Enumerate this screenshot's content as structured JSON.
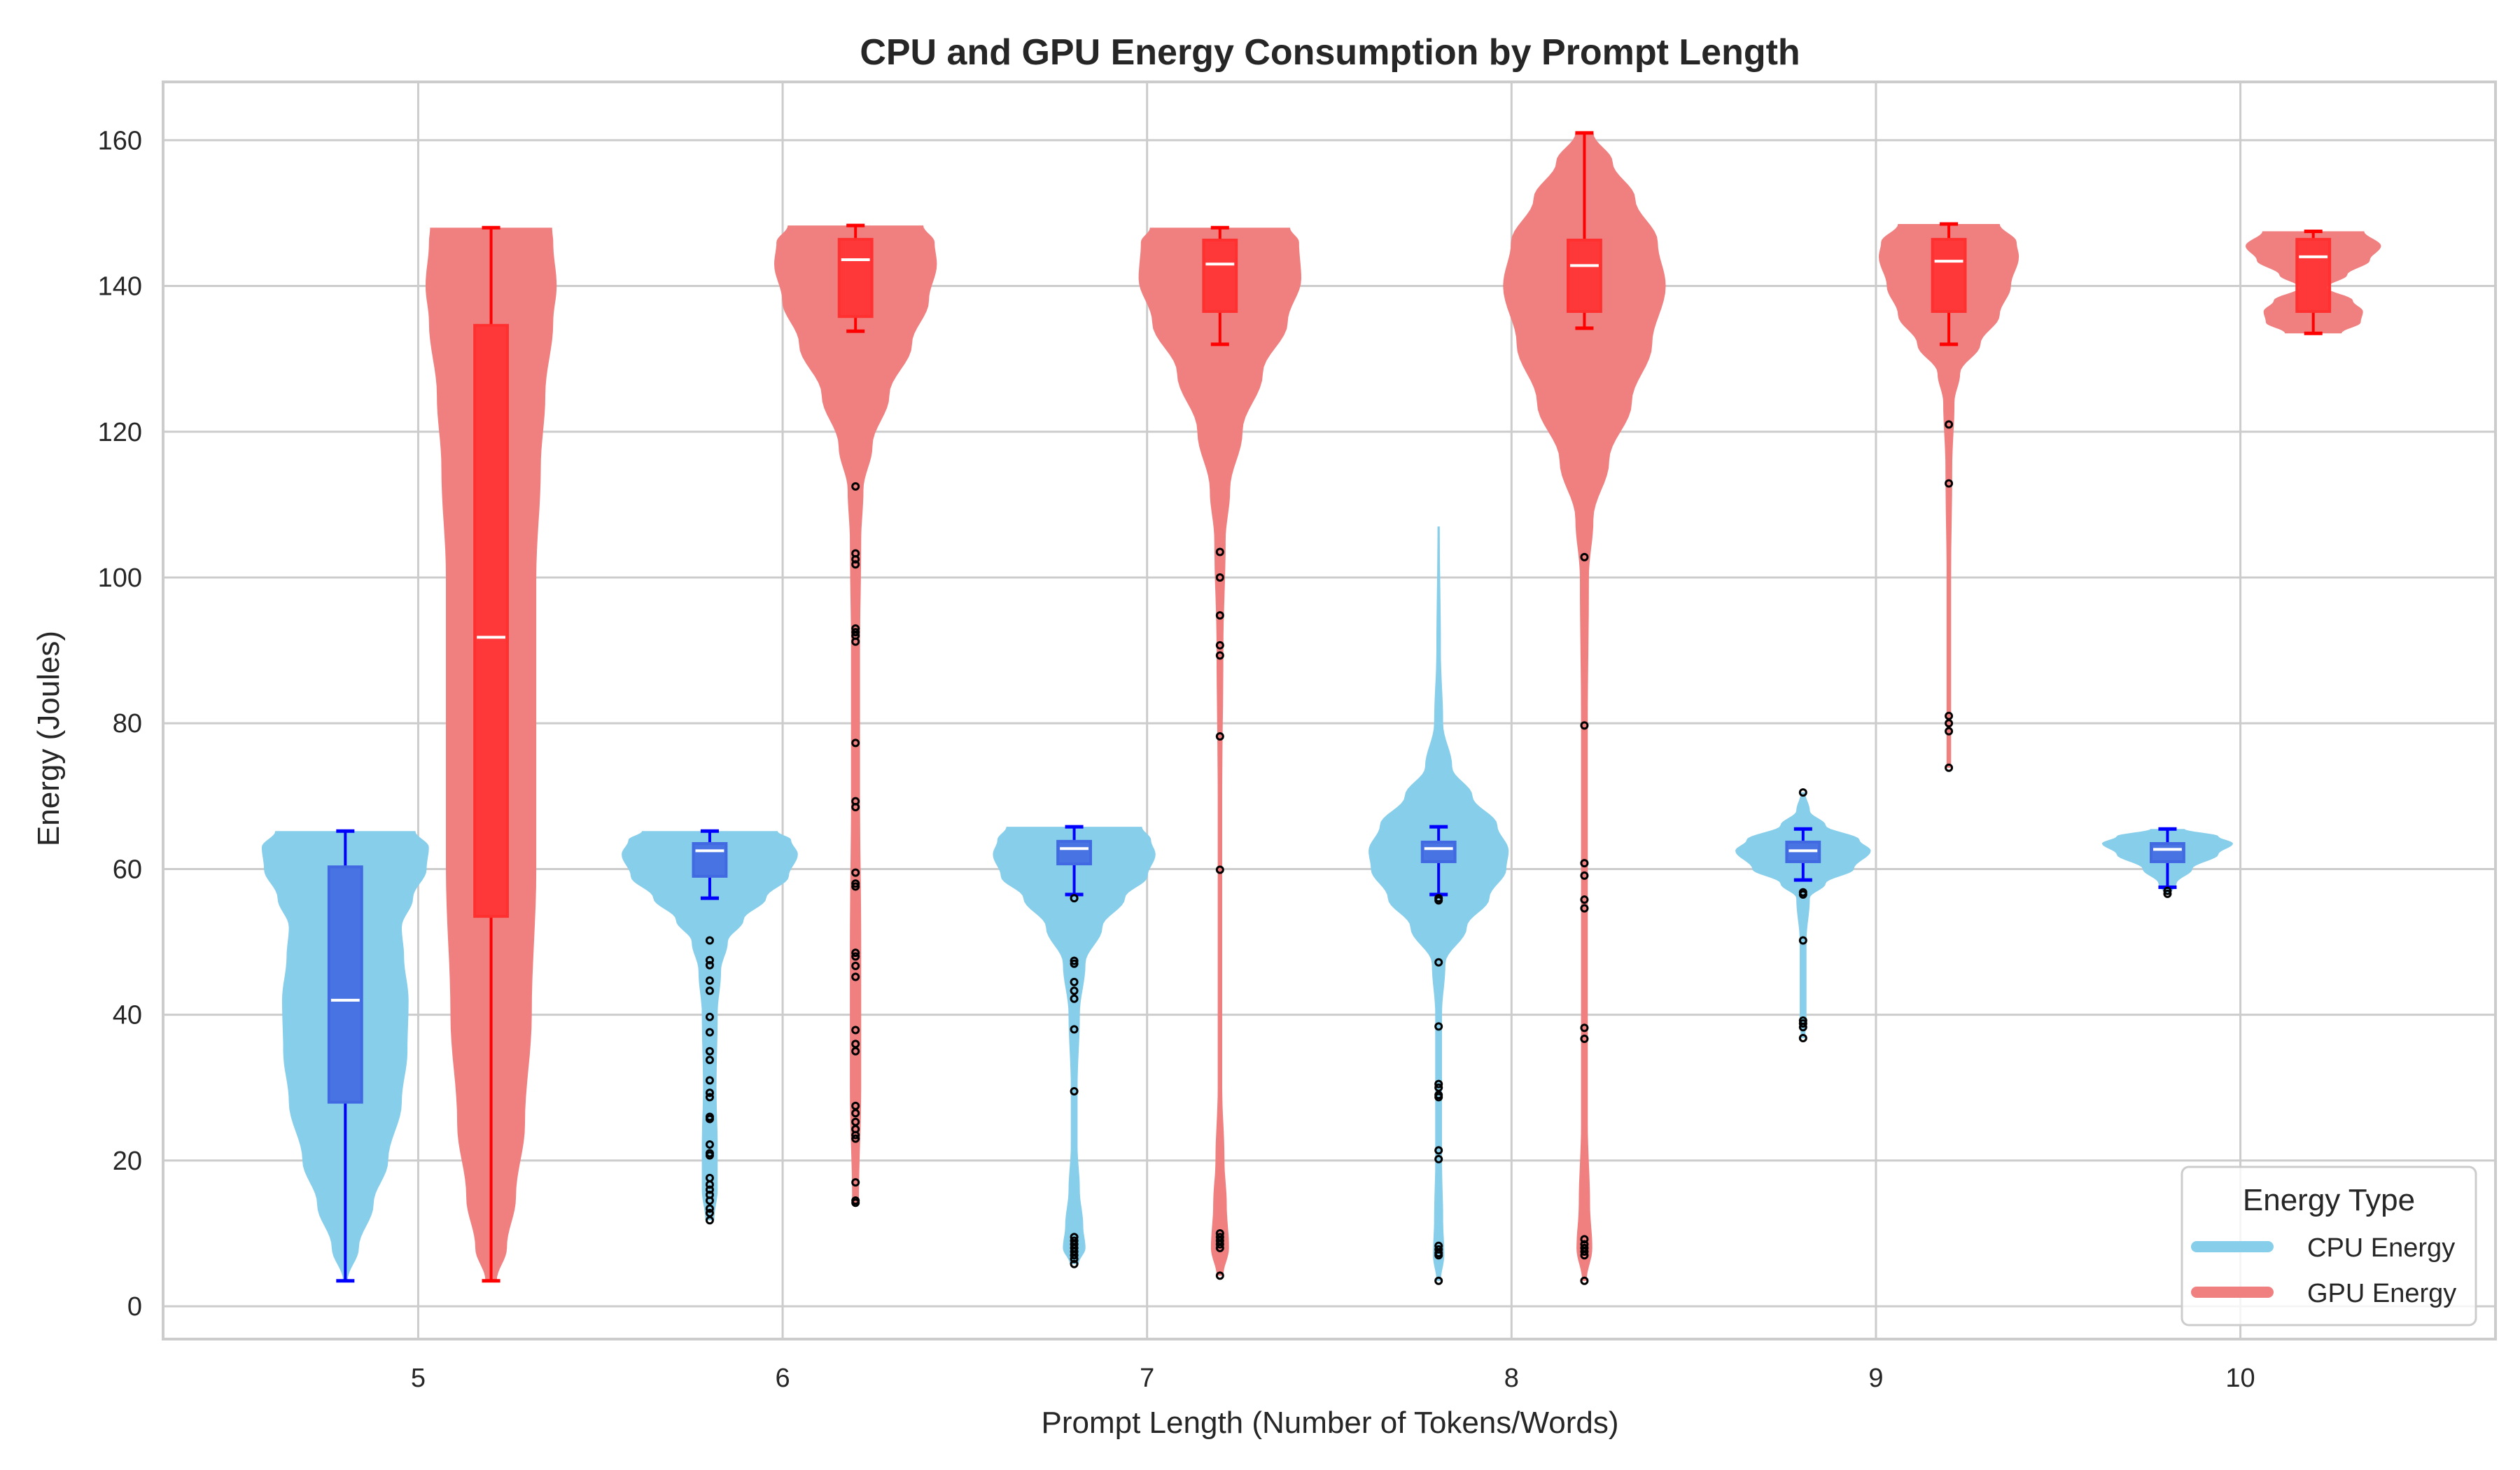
{
  "chart_data": {
    "type": "violin",
    "title": "CPU and GPU Energy Consumption by Prompt Length",
    "xlabel": "Prompt Length (Number of Tokens/Words)",
    "ylabel": "Energy (Joules)",
    "xlim": [
      4.3,
      10.7
    ],
    "ylim": [
      -4.5,
      168
    ],
    "x_ticks": [
      5,
      6,
      7,
      8,
      9,
      10
    ],
    "y_ticks": [
      0,
      20,
      40,
      60,
      80,
      100,
      120,
      140,
      160
    ],
    "grid": true,
    "legend": {
      "title": "Energy Type",
      "placement": "lower-right",
      "entries": [
        {
          "label": "CPU Energy",
          "color": "#87CEEB"
        },
        {
          "label": "GPU Energy",
          "color": "#F08080"
        }
      ]
    },
    "colors": {
      "cpu_violin": "#87CEEB",
      "gpu_violin": "#F08080",
      "cpu_box": "#4169E1",
      "gpu_box": "#FF3030",
      "cpu_line": "#0000FF",
      "gpu_line": "#FF0000",
      "median": "#FFFFFF",
      "outlier": "#000000",
      "grid": "#CCCCCC",
      "text": "#262626"
    },
    "series": [
      {
        "name": "CPU Energy",
        "offset": -0.2,
        "groups": [
          {
            "x": 5,
            "min": 3.5,
            "max": 65.2,
            "q1": 28.0,
            "median": 42.0,
            "q3": 60.3,
            "whisker_low": 3.5,
            "whisker_high": 65.2,
            "density": [
              [
                3.5,
                0.02
              ],
              [
                8,
                0.12
              ],
              [
                14,
                0.25
              ],
              [
                20,
                0.38
              ],
              [
                28,
                0.5
              ],
              [
                35,
                0.55
              ],
              [
                42,
                0.56
              ],
              [
                48,
                0.52
              ],
              [
                52,
                0.5
              ],
              [
                56,
                0.6
              ],
              [
                60,
                0.72
              ],
              [
                63,
                0.74
              ],
              [
                65.2,
                0.62
              ]
            ],
            "outliers": []
          },
          {
            "x": 6,
            "min": 11.8,
            "max": 65.2,
            "q1": 59.0,
            "median": 62.5,
            "q3": 63.5,
            "whisker_low": 56.0,
            "whisker_high": 65.2,
            "density": [
              [
                11.8,
                0.04
              ],
              [
                16,
                0.07
              ],
              [
                22,
                0.07
              ],
              [
                30,
                0.06
              ],
              [
                40,
                0.07
              ],
              [
                46,
                0.1
              ],
              [
                50,
                0.16
              ],
              [
                53,
                0.3
              ],
              [
                56,
                0.5
              ],
              [
                59,
                0.7
              ],
              [
                62,
                0.78
              ],
              [
                64,
                0.72
              ],
              [
                65.2,
                0.6
              ]
            ],
            "outliers": [
              50.2,
              47.5,
              46.8,
              44.7,
              43.3,
              39.7,
              37.6,
              35.0,
              33.8,
              31.0,
              29.3,
              28.7,
              26.0,
              25.7,
              22.2,
              21.0,
              20.7,
              17.6,
              16.7,
              16.0,
              15.3,
              14.5,
              13.4,
              12.8,
              11.8
            ]
          },
          {
            "x": 7,
            "min": 5.8,
            "max": 65.8,
            "q1": 60.7,
            "median": 62.8,
            "q3": 63.8,
            "whisker_low": 56.5,
            "whisker_high": 65.8,
            "density": [
              [
                5.8,
                0.04
              ],
              [
                8,
                0.1
              ],
              [
                11,
                0.08
              ],
              [
                16,
                0.05
              ],
              [
                22,
                0.03
              ],
              [
                30,
                0.03
              ],
              [
                40,
                0.05
              ],
              [
                47,
                0.1
              ],
              [
                52,
                0.25
              ],
              [
                56,
                0.45
              ],
              [
                59,
                0.65
              ],
              [
                62,
                0.72
              ],
              [
                64,
                0.68
              ],
              [
                65.8,
                0.6
              ]
            ],
            "outliers": [
              56.0,
              47.4,
              47.0,
              44.5,
              43.3,
              42.2,
              38.0,
              29.5,
              9.5,
              9.0,
              8.5,
              8.0,
              7.5,
              7.0,
              6.5,
              5.8
            ]
          },
          {
            "x": 8,
            "min": 3.5,
            "max": 107.0,
            "q1": 61.0,
            "median": 62.8,
            "q3": 63.7,
            "whisker_low": 56.5,
            "whisker_high": 65.8,
            "density": [
              [
                3.5,
                0.02
              ],
              [
                7,
                0.05
              ],
              [
                12,
                0.04
              ],
              [
                20,
                0.03
              ],
              [
                30,
                0.03
              ],
              [
                40,
                0.03
              ],
              [
                47,
                0.06
              ],
              [
                52,
                0.25
              ],
              [
                56,
                0.45
              ],
              [
                60,
                0.6
              ],
              [
                62.5,
                0.62
              ],
              [
                66,
                0.52
              ],
              [
                70,
                0.3
              ],
              [
                74,
                0.12
              ],
              [
                80,
                0.04
              ],
              [
                90,
                0.02
              ],
              [
                107,
                0.01
              ]
            ],
            "outliers": [
              56.0,
              55.7,
              47.2,
              38.4,
              30.5,
              30.0,
              29.0,
              28.7,
              21.4,
              20.2,
              8.3,
              7.8,
              7.3,
              7.0,
              3.5
            ]
          },
          {
            "x": 9,
            "min": 36.8,
            "max": 70.5,
            "q1": 61.0,
            "median": 62.5,
            "q3": 63.7,
            "whisker_low": 58.5,
            "whisker_high": 65.5,
            "density": [
              [
                36.8,
                0.02
              ],
              [
                40,
                0.03
              ],
              [
                50,
                0.03
              ],
              [
                56,
                0.06
              ],
              [
                58,
                0.2
              ],
              [
                60,
                0.45
              ],
              [
                62.5,
                0.6
              ],
              [
                64,
                0.5
              ],
              [
                66,
                0.2
              ],
              [
                68,
                0.06
              ],
              [
                70.5,
                0.02
              ]
            ],
            "outliers": [
              70.5,
              56.8,
              56.5,
              50.2,
              39.2,
              38.8,
              38.3,
              36.8
            ]
          },
          {
            "x": 10,
            "min": 56.6,
            "max": 65.5,
            "q1": 61.0,
            "median": 62.7,
            "q3": 63.5,
            "whisker_low": 57.5,
            "whisker_high": 65.5,
            "density": [
              [
                56.6,
                0.03
              ],
              [
                58,
                0.08
              ],
              [
                60,
                0.22
              ],
              [
                62,
                0.45
              ],
              [
                63.5,
                0.58
              ],
              [
                64.5,
                0.45
              ],
              [
                65.5,
                0.15
              ]
            ],
            "outliers": [
              57.0,
              56.6
            ]
          }
        ]
      },
      {
        "name": "GPU Energy",
        "offset": 0.2,
        "groups": [
          {
            "x": 5,
            "min": 3.5,
            "max": 148.0,
            "q1": 53.5,
            "median": 91.8,
            "q3": 134.6,
            "whisker_low": 3.5,
            "whisker_high": 148.0,
            "density": [
              [
                3.5,
                0.05
              ],
              [
                8,
                0.14
              ],
              [
                15,
                0.22
              ],
              [
                25,
                0.3
              ],
              [
                40,
                0.36
              ],
              [
                60,
                0.4
              ],
              [
                80,
                0.4
              ],
              [
                100,
                0.4
              ],
              [
                115,
                0.44
              ],
              [
                125,
                0.48
              ],
              [
                135,
                0.55
              ],
              [
                140,
                0.58
              ],
              [
                146,
                0.55
              ],
              [
                148,
                0.54
              ]
            ],
            "outliers": []
          },
          {
            "x": 6,
            "min": 14.2,
            "max": 148.3,
            "q1": 135.8,
            "median": 143.6,
            "q3": 146.4,
            "whisker_low": 133.8,
            "whisker_high": 148.3,
            "density": [
              [
                14.2,
                0.03
              ],
              [
                30,
                0.05
              ],
              [
                50,
                0.05
              ],
              [
                70,
                0.04
              ],
              [
                90,
                0.04
              ],
              [
                105,
                0.05
              ],
              [
                112,
                0.07
              ],
              [
                118,
                0.15
              ],
              [
                125,
                0.3
              ],
              [
                132,
                0.5
              ],
              [
                138,
                0.65
              ],
              [
                143,
                0.72
              ],
              [
                146,
                0.7
              ],
              [
                148.3,
                0.6
              ]
            ],
            "outliers": [
              112.5,
              103.3,
              102.5,
              101.8,
              93.0,
              92.5,
              92.0,
              91.2,
              77.3,
              69.3,
              68.5,
              59.5,
              58.0,
              57.6,
              48.5,
              48.0,
              46.7,
              45.2,
              37.9,
              36.0,
              35.0,
              27.5,
              26.5,
              25.3,
              24.3,
              23.5,
              23.0,
              17.0,
              14.5,
              14.2
            ]
          },
          {
            "x": 7,
            "min": 4.2,
            "max": 148.0,
            "q1": 136.5,
            "median": 143.0,
            "q3": 146.3,
            "whisker_low": 132.0,
            "whisker_high": 148.0,
            "density": [
              [
                4.2,
                0.03
              ],
              [
                8,
                0.08
              ],
              [
                14,
                0.06
              ],
              [
                20,
                0.04
              ],
              [
                30,
                0.02
              ],
              [
                50,
                0.02
              ],
              [
                70,
                0.02
              ],
              [
                90,
                0.03
              ],
              [
                105,
                0.05
              ],
              [
                112,
                0.09
              ],
              [
                120,
                0.2
              ],
              [
                128,
                0.38
              ],
              [
                135,
                0.6
              ],
              [
                141,
                0.72
              ],
              [
                146,
                0.7
              ],
              [
                148,
                0.62
              ]
            ],
            "outliers": [
              103.5,
              100.0,
              94.8,
              90.7,
              89.3,
              78.2,
              59.9,
              10.0,
              9.5,
              9.0,
              8.5,
              8.0,
              4.2
            ]
          },
          {
            "x": 8,
            "min": 3.5,
            "max": 161.0,
            "q1": 136.5,
            "median": 142.8,
            "q3": 146.3,
            "whisker_low": 134.2,
            "whisker_high": 161.0,
            "density": [
              [
                3.5,
                0.02
              ],
              [
                8,
                0.07
              ],
              [
                14,
                0.05
              ],
              [
                25,
                0.03
              ],
              [
                50,
                0.03
              ],
              [
                80,
                0.03
              ],
              [
                100,
                0.04
              ],
              [
                108,
                0.08
              ],
              [
                116,
                0.22
              ],
              [
                124,
                0.42
              ],
              [
                132,
                0.6
              ],
              [
                140,
                0.72
              ],
              [
                146,
                0.65
              ],
              [
                152,
                0.45
              ],
              [
                157,
                0.25
              ],
              [
                161,
                0.08
              ]
            ],
            "outliers": [
              102.8,
              79.7,
              60.8,
              59.1,
              55.8,
              54.6,
              38.2,
              36.7,
              9.2,
              8.5,
              8.0,
              7.5,
              7.0,
              3.5
            ]
          },
          {
            "x": 9,
            "min": 73.9,
            "max": 148.5,
            "q1": 136.5,
            "median": 143.4,
            "q3": 146.4,
            "whisker_low": 132.0,
            "whisker_high": 148.5,
            "density": [
              [
                73.9,
                0.02
              ],
              [
                85,
                0.02
              ],
              [
                100,
                0.02
              ],
              [
                115,
                0.03
              ],
              [
                124,
                0.05
              ],
              [
                128,
                0.1
              ],
              [
                132,
                0.28
              ],
              [
                136,
                0.45
              ],
              [
                140,
                0.55
              ],
              [
                144,
                0.62
              ],
              [
                146,
                0.6
              ],
              [
                148.5,
                0.45
              ]
            ],
            "outliers": [
              121.0,
              112.9,
              81.0,
              80.0,
              78.9,
              73.9
            ]
          },
          {
            "x": 10,
            "min": 133.5,
            "max": 147.5,
            "q1": 136.5,
            "median": 144.0,
            "q3": 146.4,
            "whisker_low": 133.5,
            "whisker_high": 147.5,
            "density": [
              [
                133.5,
                0.25
              ],
              [
                135,
                0.42
              ],
              [
                136.5,
                0.44
              ],
              [
                138,
                0.35
              ],
              [
                139.8,
                0.12
              ],
              [
                141.5,
                0.3
              ],
              [
                143.5,
                0.5
              ],
              [
                145.5,
                0.6
              ],
              [
                147.5,
                0.45
              ]
            ],
            "outliers": []
          }
        ]
      }
    ]
  }
}
